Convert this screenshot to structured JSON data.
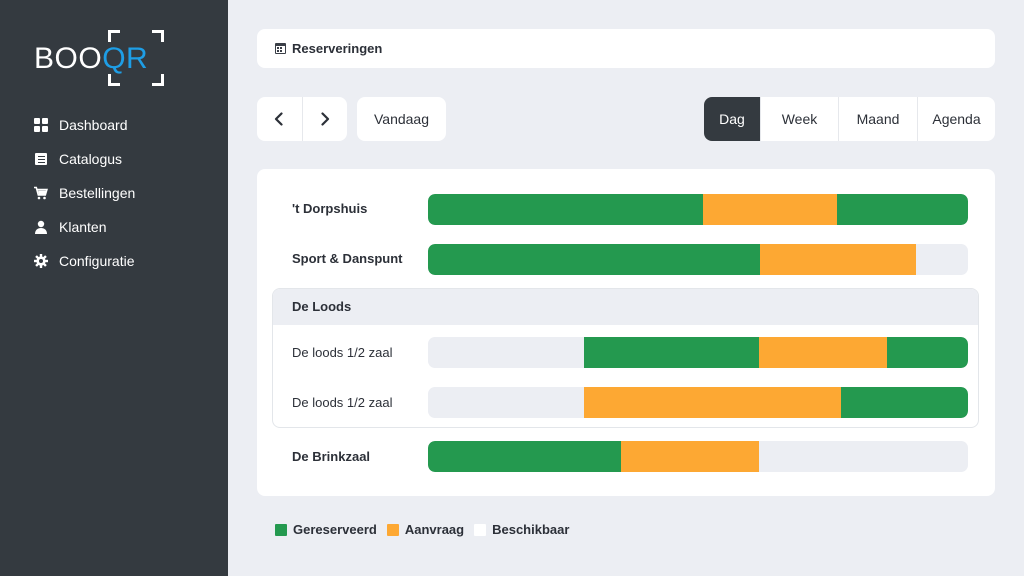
{
  "brand": {
    "logo_prefix": "BOO",
    "logo_suffix": "QR"
  },
  "sidebar": {
    "items": [
      {
        "label": "Dashboard",
        "icon": "dashboard-icon"
      },
      {
        "label": "Catalogus",
        "icon": "catalog-icon"
      },
      {
        "label": "Bestellingen",
        "icon": "cart-icon"
      },
      {
        "label": "Klanten",
        "icon": "user-icon"
      },
      {
        "label": "Configuratie",
        "icon": "gear-icon"
      }
    ]
  },
  "header": {
    "title": "Reserveringen",
    "icon": "calendar-icon"
  },
  "toolbar": {
    "prev_icon": "chevron-left-icon",
    "next_icon": "chevron-right-icon",
    "today_label": "Vandaag",
    "views": [
      {
        "label": "Dag",
        "active": true
      },
      {
        "label": "Week",
        "active": false
      },
      {
        "label": "Maand",
        "active": false
      },
      {
        "label": "Agenda",
        "active": false
      }
    ]
  },
  "colors": {
    "reserved": "#24994f",
    "request": "#fda833",
    "available": "#eceef3",
    "sidebar": "#343a40",
    "accent": "#1e9ee6"
  },
  "timeline": {
    "rows": [
      {
        "label": "'t Dorpshuis",
        "segments": [
          {
            "status": "reserved",
            "start": 0.0,
            "end": 0.51
          },
          {
            "status": "request",
            "start": 0.51,
            "end": 0.757
          },
          {
            "status": "reserved",
            "start": 0.757,
            "end": 1.0
          }
        ]
      },
      {
        "label": "Sport & Danspunt",
        "segments": [
          {
            "status": "reserved",
            "start": 0.0,
            "end": 0.614
          },
          {
            "status": "request",
            "start": 0.614,
            "end": 0.904
          }
        ]
      }
    ],
    "group": {
      "label": "De Loods",
      "rows": [
        {
          "label": "De loods 1/2 zaal",
          "segments": [
            {
              "status": "reserved",
              "start": 0.289,
              "end": 0.613
            },
            {
              "status": "request",
              "start": 0.613,
              "end": 0.85
            },
            {
              "status": "reserved",
              "start": 0.85,
              "end": 1.0
            }
          ]
        },
        {
          "label": "De loods 1/2 zaal",
          "segments": [
            {
              "status": "request",
              "start": 0.289,
              "end": 0.765
            },
            {
              "status": "reserved",
              "start": 0.765,
              "end": 1.0
            }
          ]
        }
      ]
    },
    "last_row": {
      "label": "De Brinkzaal",
      "segments": [
        {
          "status": "reserved",
          "start": 0.0,
          "end": 0.358
        },
        {
          "status": "request",
          "start": 0.358,
          "end": 0.613
        }
      ]
    }
  },
  "legend": [
    {
      "label": "Gereserveerd",
      "status": "reserved"
    },
    {
      "label": "Aanvraag",
      "status": "request"
    },
    {
      "label": "Beschikbaar",
      "status": "available"
    }
  ]
}
